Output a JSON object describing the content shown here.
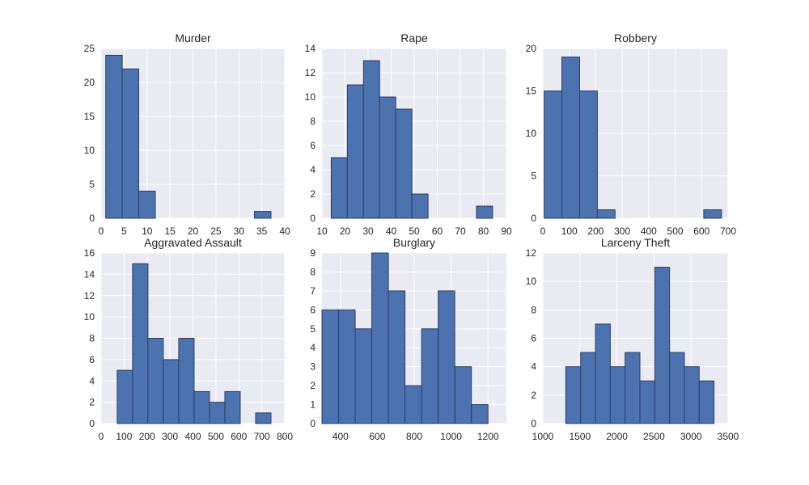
{
  "colors": {
    "bar_fill": "#4c72b0",
    "bar_edge": "#2d3f5f",
    "plot_background": "#eaeaf2",
    "grid": "#ffffff"
  },
  "chart_data": [
    {
      "type": "bar",
      "title": "Murder",
      "xlim": [
        0,
        40
      ],
      "ylim": [
        0,
        25
      ],
      "xticks": [
        0,
        5,
        10,
        15,
        20,
        25,
        30,
        35,
        40
      ],
      "yticks": [
        0,
        5,
        10,
        15,
        20,
        25
      ],
      "bins": [
        [
          1.0,
          4.6,
          24
        ],
        [
          4.6,
          8.2,
          22
        ],
        [
          8.2,
          11.8,
          4
        ],
        [
          11.8,
          15.4,
          0
        ],
        [
          15.4,
          19.0,
          0
        ],
        [
          19.0,
          22.6,
          0
        ],
        [
          22.6,
          26.2,
          0
        ],
        [
          26.2,
          29.8,
          0
        ],
        [
          29.8,
          33.4,
          0
        ],
        [
          33.4,
          37.0,
          1
        ]
      ]
    },
    {
      "type": "bar",
      "title": "Rape",
      "xlim": [
        10,
        90
      ],
      "ylim": [
        0,
        14
      ],
      "xticks": [
        10,
        20,
        30,
        40,
        50,
        60,
        70,
        80,
        90
      ],
      "yticks": [
        0,
        2,
        4,
        6,
        8,
        10,
        12,
        14
      ],
      "bins": [
        [
          14,
          21,
          5
        ],
        [
          21,
          28,
          11
        ],
        [
          28,
          35,
          13
        ],
        [
          35,
          42,
          10
        ],
        [
          42,
          49,
          9
        ],
        [
          49,
          56,
          2
        ],
        [
          56,
          63,
          0
        ],
        [
          63,
          70,
          0
        ],
        [
          70,
          77,
          0
        ],
        [
          77,
          84,
          1
        ]
      ]
    },
    {
      "type": "bar",
      "title": "Robbery",
      "xlim": [
        0,
        700
      ],
      "ylim": [
        0,
        20
      ],
      "xticks": [
        0,
        100,
        200,
        300,
        400,
        500,
        600,
        700
      ],
      "yticks": [
        0,
        5,
        10,
        15,
        20
      ],
      "bins": [
        [
          5,
          72,
          15
        ],
        [
          72,
          139,
          19
        ],
        [
          139,
          206,
          15
        ],
        [
          206,
          273,
          1
        ],
        [
          273,
          340,
          0
        ],
        [
          340,
          407,
          0
        ],
        [
          407,
          474,
          0
        ],
        [
          474,
          541,
          0
        ],
        [
          541,
          608,
          0
        ],
        [
          608,
          675,
          1
        ]
      ]
    },
    {
      "type": "bar",
      "title": "Aggravated Assault",
      "xlim": [
        0,
        800
      ],
      "ylim": [
        0,
        16
      ],
      "xticks": [
        0,
        100,
        200,
        300,
        400,
        500,
        600,
        700,
        800
      ],
      "yticks": [
        0,
        2,
        4,
        6,
        8,
        10,
        12,
        14,
        16
      ],
      "bins": [
        [
          70,
          137,
          5
        ],
        [
          137,
          204,
          15
        ],
        [
          204,
          271,
          8
        ],
        [
          271,
          338,
          6
        ],
        [
          338,
          405,
          8
        ],
        [
          405,
          472,
          3
        ],
        [
          472,
          539,
          2
        ],
        [
          539,
          606,
          3
        ],
        [
          606,
          673,
          0
        ],
        [
          673,
          740,
          1
        ]
      ]
    },
    {
      "type": "bar",
      "title": "Burglary",
      "xlim": [
        300,
        1300
      ],
      "ylim": [
        0,
        9
      ],
      "xticks": [
        400,
        600,
        800,
        1000,
        1200
      ],
      "yticks": [
        0,
        1,
        2,
        3,
        4,
        5,
        6,
        7,
        8,
        9
      ],
      "bins": [
        [
          300,
          390,
          6
        ],
        [
          390,
          480,
          6
        ],
        [
          480,
          570,
          5
        ],
        [
          570,
          660,
          9
        ],
        [
          660,
          750,
          7
        ],
        [
          750,
          840,
          2
        ],
        [
          840,
          930,
          5
        ],
        [
          930,
          1020,
          7
        ],
        [
          1020,
          1110,
          3
        ],
        [
          1110,
          1200,
          1
        ]
      ]
    },
    {
      "type": "bar",
      "title": "Larceny Theft",
      "xlim": [
        1000,
        3500
      ],
      "ylim": [
        0,
        12
      ],
      "xticks": [
        1000,
        1500,
        2000,
        2500,
        3000,
        3500
      ],
      "yticks": [
        0,
        2,
        4,
        6,
        8,
        10,
        12
      ],
      "bins": [
        [
          1310,
          1510,
          4
        ],
        [
          1510,
          1710,
          5
        ],
        [
          1710,
          1910,
          7
        ],
        [
          1910,
          2110,
          4
        ],
        [
          2110,
          2310,
          5
        ],
        [
          2310,
          2510,
          3
        ],
        [
          2510,
          2710,
          11
        ],
        [
          2710,
          2910,
          5
        ],
        [
          2910,
          3110,
          4
        ],
        [
          3110,
          3310,
          3
        ]
      ]
    }
  ]
}
